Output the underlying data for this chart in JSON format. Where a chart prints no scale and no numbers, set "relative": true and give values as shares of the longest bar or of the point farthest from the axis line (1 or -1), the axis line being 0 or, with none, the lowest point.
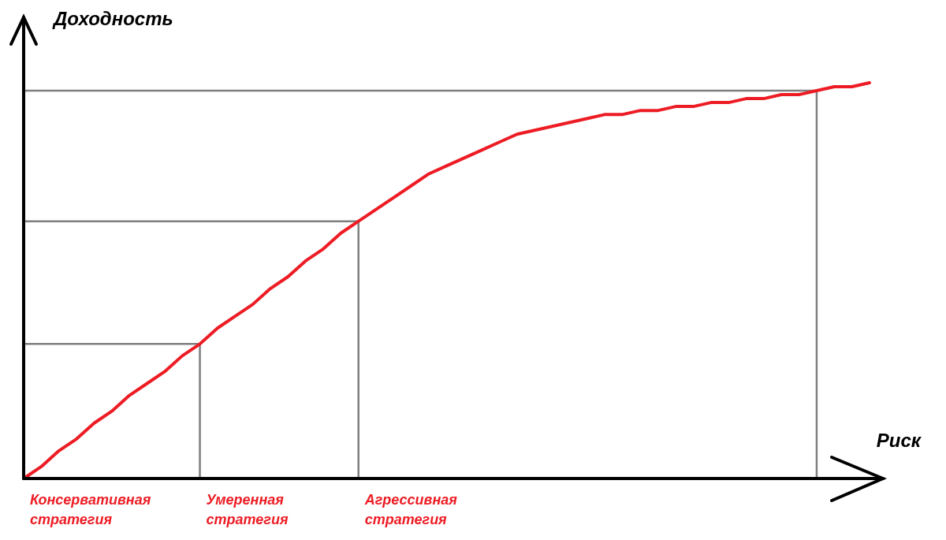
{
  "chart_data": {
    "type": "line",
    "relative": true,
    "xlabel": "Риск",
    "ylabel": "Доходность",
    "categories": [
      null,
      null,
      null,
      null,
      null,
      null,
      null,
      null,
      null,
      null,
      null,
      null,
      null,
      null,
      null,
      null,
      null,
      null,
      null,
      null,
      null,
      null,
      null,
      null,
      null,
      null,
      null,
      null,
      null,
      null,
      null,
      null,
      null,
      null,
      null,
      null,
      null,
      null,
      null,
      null,
      null,
      null,
      null,
      null,
      null,
      null,
      null,
      null,
      null
    ],
    "annotations": [
      "Консервативная стратегия",
      "Умеренная стратегия",
      "Агрессивная стратегия"
    ],
    "ref_lines": [
      {
        "axis": "y",
        "value": 0.34,
        "color": "#7f7f7f"
      },
      {
        "axis": "y",
        "value": 0.65,
        "color": "#7f7f7f"
      },
      {
        "axis": "y",
        "value": 0.98,
        "color": "#7f7f7f"
      }
    ],
    "series": [
      {
        "color": "#ed1c24",
        "values": [
          0,
          0.03,
          0.07,
          0.1,
          0.14,
          0.17,
          0.21,
          0.24,
          0.27,
          0.31,
          0.34,
          0.38,
          0.41,
          0.44,
          0.48,
          0.51,
          0.55,
          0.58,
          0.62,
          0.65,
          0.68,
          0.71,
          0.74,
          0.77,
          0.79,
          0.81,
          0.83,
          0.85,
          0.87,
          0.88,
          0.89,
          0.9,
          0.91,
          0.92,
          0.92,
          0.93,
          0.93,
          0.94,
          0.94,
          0.95,
          0.95,
          0.96,
          0.96,
          0.97,
          0.97,
          0.98,
          0.99,
          0.99,
          1
        ]
      }
    ],
    "marker": "none",
    "line_style": "solid"
  }
}
